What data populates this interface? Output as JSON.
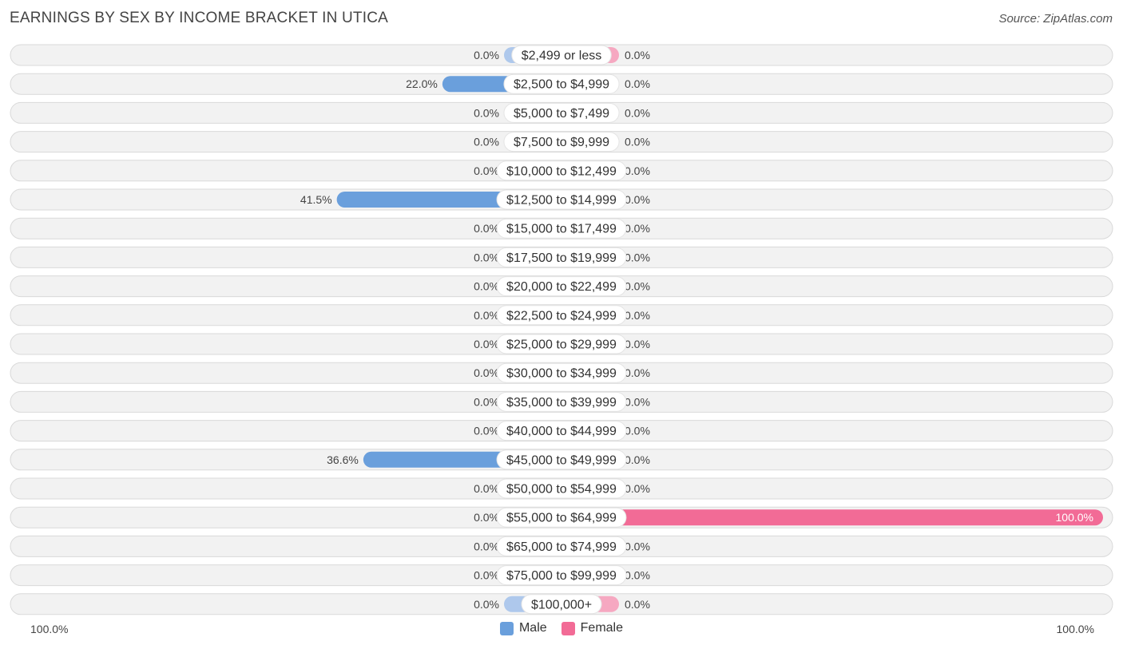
{
  "title": "EARNINGS BY SEX BY INCOME BRACKET IN UTICA",
  "source": "Source: ZipAtlas.com",
  "axis": {
    "left_label": "100.0%",
    "right_label": "100.0%"
  },
  "colors": {
    "male": "#6a9fdc",
    "male_light": "#aec8ec",
    "female": "#f26b96",
    "female_light": "#f6a8c1",
    "row_bg": "#f2f2f2",
    "row_border": "#d9d9d9"
  },
  "legend": [
    {
      "name": "Male",
      "color": "#6a9fdc"
    },
    {
      "name": "Female",
      "color": "#f26b96"
    }
  ],
  "chart_data": {
    "type": "bar",
    "orientation": "horizontal-diverging",
    "title": "EARNINGS BY SEX BY INCOME BRACKET IN UTICA",
    "xlim": [
      -100,
      100
    ],
    "categories": [
      "$2,499 or less",
      "$2,500 to $4,999",
      "$5,000 to $7,499",
      "$7,500 to $9,999",
      "$10,000 to $12,499",
      "$12,500 to $14,999",
      "$15,000 to $17,499",
      "$17,500 to $19,999",
      "$20,000 to $22,499",
      "$22,500 to $24,999",
      "$25,000 to $29,999",
      "$30,000 to $34,999",
      "$35,000 to $39,999",
      "$40,000 to $44,999",
      "$45,000 to $49,999",
      "$50,000 to $54,999",
      "$55,000 to $64,999",
      "$65,000 to $74,999",
      "$75,000 to $99,999",
      "$100,000+"
    ],
    "series": [
      {
        "name": "Male",
        "values": [
          0,
          22.0,
          0,
          0,
          0,
          41.5,
          0,
          0,
          0,
          0,
          0,
          0,
          0,
          0,
          36.6,
          0,
          0,
          0,
          0,
          0
        ],
        "labels": [
          "0.0%",
          "22.0%",
          "0.0%",
          "0.0%",
          "0.0%",
          "41.5%",
          "0.0%",
          "0.0%",
          "0.0%",
          "0.0%",
          "0.0%",
          "0.0%",
          "0.0%",
          "0.0%",
          "36.6%",
          "0.0%",
          "0.0%",
          "0.0%",
          "0.0%",
          "0.0%"
        ]
      },
      {
        "name": "Female",
        "values": [
          0,
          0,
          0,
          0,
          0,
          0,
          0,
          0,
          0,
          0,
          0,
          0,
          0,
          0,
          0,
          0,
          100.0,
          0,
          0,
          0
        ],
        "labels": [
          "0.0%",
          "0.0%",
          "0.0%",
          "0.0%",
          "0.0%",
          "0.0%",
          "0.0%",
          "0.0%",
          "0.0%",
          "0.0%",
          "0.0%",
          "0.0%",
          "0.0%",
          "0.0%",
          "0.0%",
          "0.0%",
          "100.0%",
          "0.0%",
          "0.0%",
          "0.0%"
        ]
      }
    ]
  }
}
